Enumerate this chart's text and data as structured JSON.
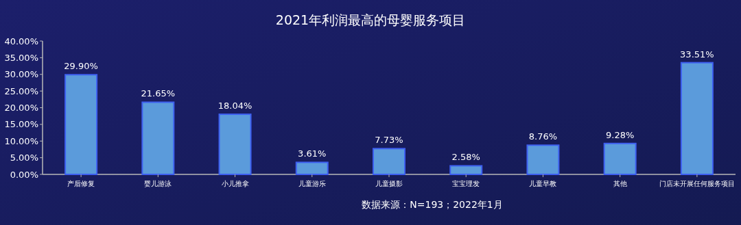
{
  "chart_data": {
    "type": "bar",
    "title": "2021年利润最高的母婴服务项目",
    "categories": [
      "产后修复",
      "婴儿游泳",
      "小儿推拿",
      "儿童游乐",
      "儿童摄影",
      "宝宝理发",
      "儿童早教",
      "其他",
      "门店未开展任何服务项目"
    ],
    "values": [
      29.9,
      21.65,
      18.04,
      3.61,
      7.73,
      2.58,
      8.76,
      9.28,
      33.51
    ],
    "value_labels": [
      "29.90%",
      "21.65%",
      "18.04%",
      "3.61%",
      "7.73%",
      "2.58%",
      "8.76%",
      "9.28%",
      "33.51%"
    ],
    "color": "#5b9bdb",
    "ylim": [
      0,
      40
    ],
    "yticks": [
      {
        "value": 0,
        "label": "0.00%"
      },
      {
        "value": 5,
        "label": "5.00%"
      },
      {
        "value": 10,
        "label": "10.00%"
      },
      {
        "value": 15,
        "label": "15.00%"
      },
      {
        "value": 20,
        "label": "20.00%"
      },
      {
        "value": 25,
        "label": "25.00%"
      },
      {
        "value": 30,
        "label": "30.00%"
      },
      {
        "value": 35,
        "label": "35.00%"
      },
      {
        "value": 40,
        "label": "40.00%"
      }
    ],
    "annotations": [
      "数据来源：N=193；2022年1月"
    ]
  }
}
